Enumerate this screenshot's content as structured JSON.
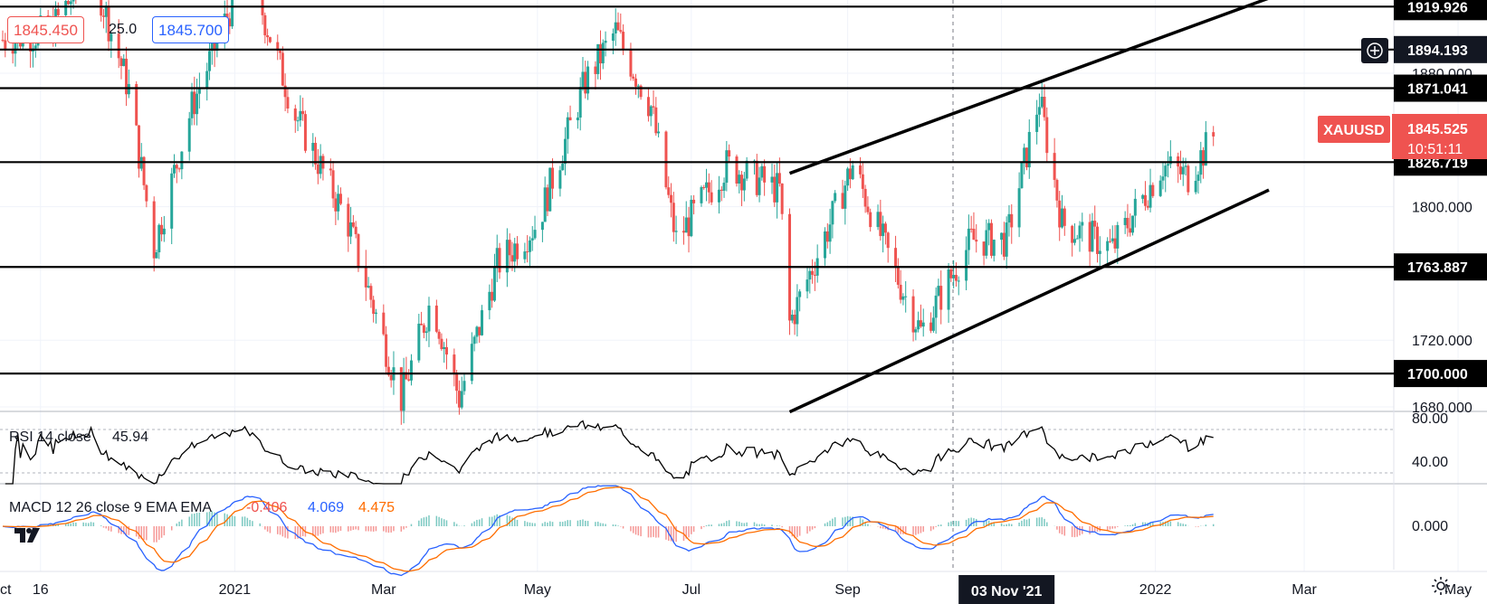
{
  "header": {
    "bid": "1845.450",
    "spread": "25.0",
    "ask": "1845.700"
  },
  "price_axis": {
    "ticks": [
      "1680.000",
      "1720.000",
      "1800.000",
      "1880.000"
    ],
    "ticks_values": [
      1680,
      1720,
      1800,
      1880
    ],
    "hline_labels": [
      "1919.926",
      "1894.193",
      "1871.041",
      "1826.719",
      "1763.887",
      "1700.000"
    ],
    "hline_values": [
      1919.926,
      1894.193,
      1871.041,
      1826.719,
      1763.887,
      1700.0
    ],
    "symbol": "XAUUSD",
    "last_price": "1845.525",
    "countdown": "10:51:11"
  },
  "time_axis": {
    "labels": [
      "ct",
      "16",
      "2021",
      "Mar",
      "May",
      "Jul",
      "Sep",
      "03 Nov '21",
      "2022",
      "Mar",
      "May"
    ]
  },
  "rsi": {
    "label": "RSI 14 close",
    "value": "45.94",
    "ticks": [
      "80.00",
      "40.00"
    ]
  },
  "macd": {
    "label": "MACD 12 26 close 9 EMA EMA",
    "hist_value": "-0.406",
    "macd_value": "4.069",
    "signal_value": "4.475",
    "tick": "0.000"
  },
  "colors": {
    "up": "#26a69a",
    "down": "#ef5350",
    "macd": "#2962ff",
    "signal": "#ff6d00",
    "tag_bg": "#000000",
    "last_tag_bg": "#ef5350"
  },
  "chart_data": {
    "type": "candlestick",
    "symbol": "XAUUSD",
    "timeframe": "daily",
    "horizontal_levels": [
      1919.926,
      1894.193,
      1871.041,
      1826.719,
      1763.887,
      1700.0
    ],
    "channel": {
      "upper": [
        {
          "date": "2021-08-09",
          "price": 1820
        },
        {
          "date": "2022-02-15",
          "price": 1925
        }
      ],
      "lower": [
        {
          "date": "2021-08-09",
          "price": 1677
        },
        {
          "date": "2022-02-15",
          "price": 1810
        }
      ]
    },
    "close_path": [
      {
        "date": "2020-10-01",
        "close": 1900
      },
      {
        "date": "2020-10-20",
        "close": 1905
      },
      {
        "date": "2020-11-05",
        "close": 1945
      },
      {
        "date": "2020-11-20",
        "close": 1870
      },
      {
        "date": "2020-11-30",
        "close": 1775
      },
      {
        "date": "2020-12-15",
        "close": 1860
      },
      {
        "date": "2021-01-06",
        "close": 1945
      },
      {
        "date": "2021-01-25",
        "close": 1855
      },
      {
        "date": "2021-02-15",
        "close": 1790
      },
      {
        "date": "2021-03-08",
        "close": 1685
      },
      {
        "date": "2021-03-20",
        "close": 1745
      },
      {
        "date": "2021-03-31",
        "close": 1685
      },
      {
        "date": "2021-04-15",
        "close": 1765
      },
      {
        "date": "2021-05-01",
        "close": 1790
      },
      {
        "date": "2021-05-20",
        "close": 1875
      },
      {
        "date": "2021-06-01",
        "close": 1905
      },
      {
        "date": "2021-06-15",
        "close": 1860
      },
      {
        "date": "2021-06-25",
        "close": 1780
      },
      {
        "date": "2021-07-15",
        "close": 1825
      },
      {
        "date": "2021-08-05",
        "close": 1810
      },
      {
        "date": "2021-08-09",
        "close": 1730
      },
      {
        "date": "2021-08-25",
        "close": 1790
      },
      {
        "date": "2021-09-03",
        "close": 1825
      },
      {
        "date": "2021-09-20",
        "close": 1760
      },
      {
        "date": "2021-09-30",
        "close": 1725
      },
      {
        "date": "2021-10-20",
        "close": 1780
      },
      {
        "date": "2021-11-03",
        "close": 1780
      },
      {
        "date": "2021-11-16",
        "close": 1865
      },
      {
        "date": "2021-11-25",
        "close": 1790
      },
      {
        "date": "2021-12-15",
        "close": 1775
      },
      {
        "date": "2022-01-04",
        "close": 1825
      },
      {
        "date": "2022-01-14",
        "close": 1818
      },
      {
        "date": "2022-01-25",
        "close": 1845
      }
    ],
    "rsi_last": 45.94,
    "macd_last": {
      "histogram": -0.406,
      "macd": 4.069,
      "signal": 4.475
    }
  }
}
